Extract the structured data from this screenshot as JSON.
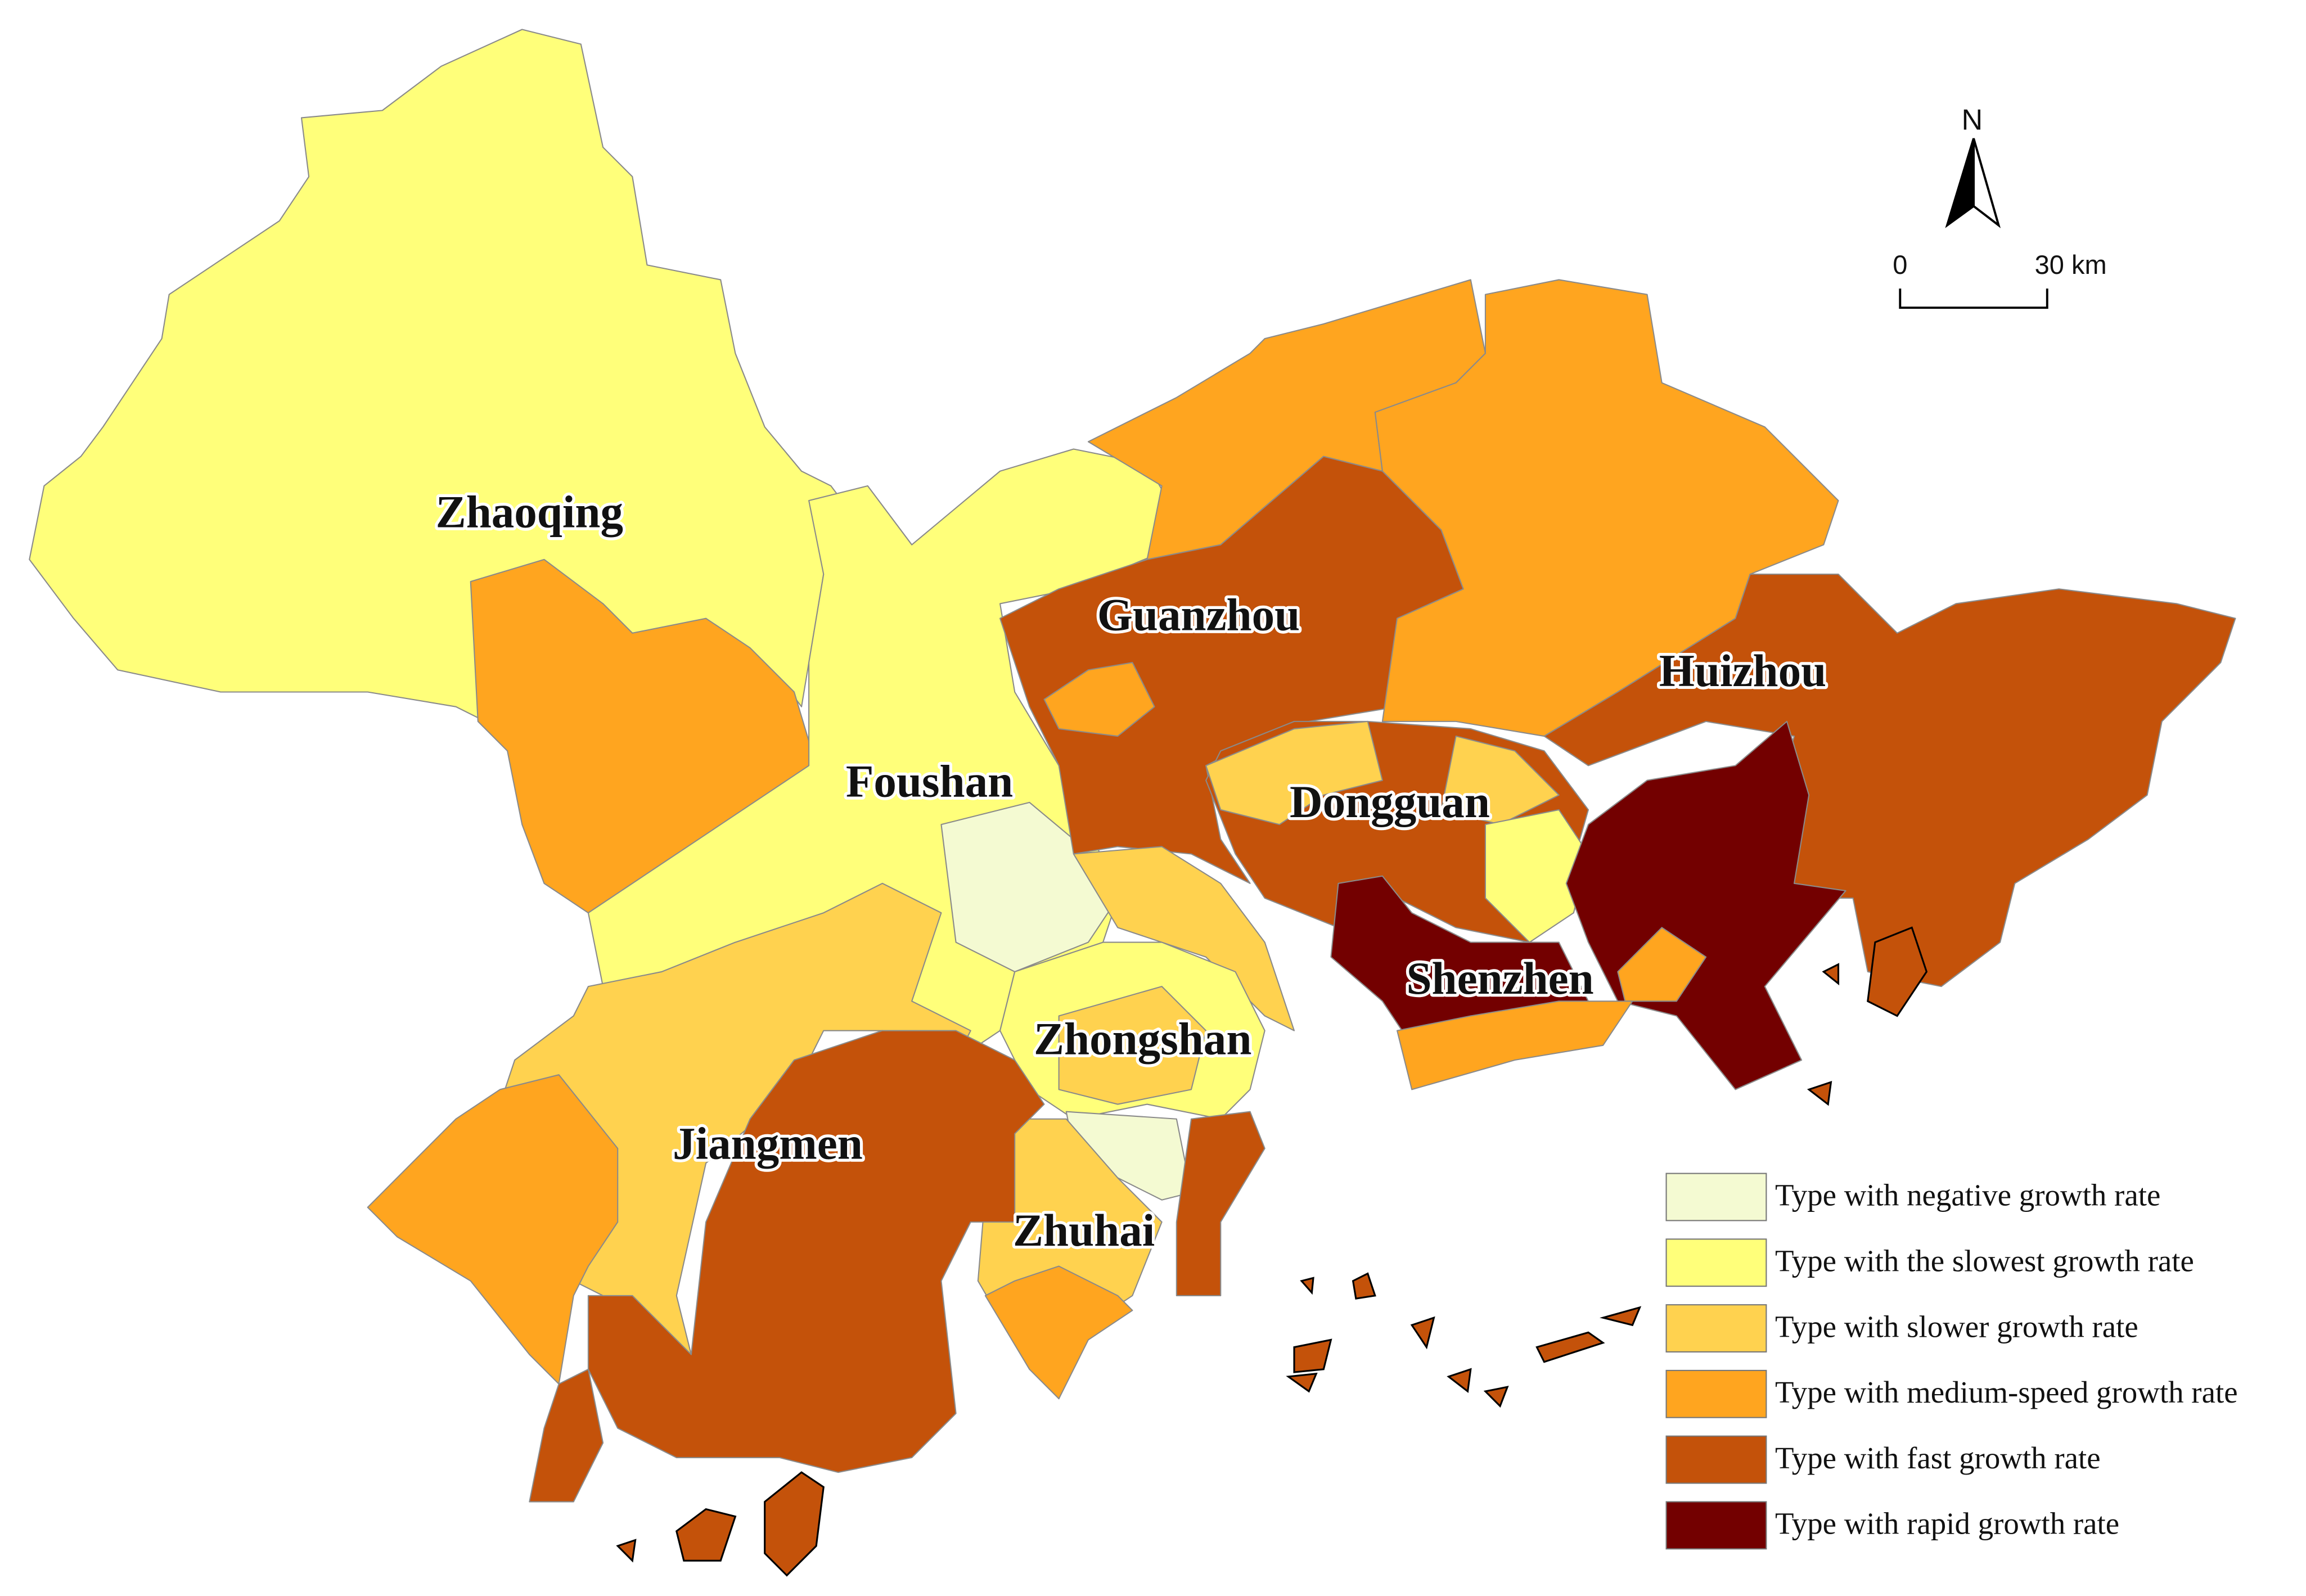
{
  "map": {
    "city_labels": [
      "Zhaoqing",
      "Guanzhou",
      "Huizhou",
      "Foushan",
      "Dongguan",
      "Shenzhen",
      "Zhongshan",
      "Jiangmen",
      "Zhuhai"
    ],
    "legend": [
      {
        "label": "Type with negative growth rate",
        "color": "#F4FAD2"
      },
      {
        "label": "Type with the slowest growth rate",
        "color": "#FFFF7A"
      },
      {
        "label": "Type with slower growth rate",
        "color": "#FFD24F"
      },
      {
        "label": "Type with medium-speed growth rate",
        "color": "#FFA51F"
      },
      {
        "label": "Type with fast growth rate",
        "color": "#C4520A"
      },
      {
        "label": "Type with rapid growth rate",
        "color": "#730000"
      }
    ],
    "north_label": "N",
    "scale_bar": {
      "start_label": "0",
      "end_label": "30 km"
    }
  }
}
